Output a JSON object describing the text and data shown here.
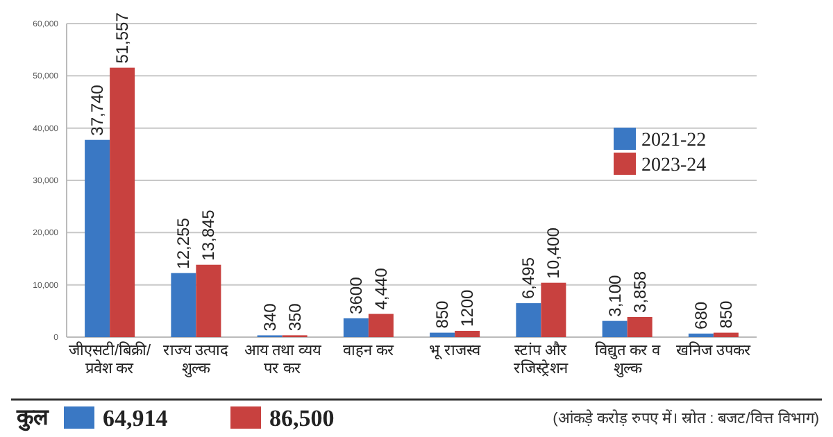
{
  "chart_data": {
    "type": "bar",
    "categories": [
      "जीएसटी/बिक्री/ प्रवेश कर",
      "राज्य उत्पाद शुल्क",
      "आय तथा व्यय पर कर",
      "वाहन कर",
      "भू राजस्व",
      "स्टांप और रजिस्ट्रेशन",
      "विद्युत कर व शुल्क",
      "खनिज उपकर"
    ],
    "series": [
      {
        "name": "2021-22",
        "color": "#3a78c4",
        "values": [
          37740,
          12255,
          340,
          3600,
          850,
          6495,
          3100,
          680
        ],
        "value_labels": [
          "37,740",
          "12,255",
          "340",
          "3600",
          "850",
          "6,495",
          "3,100",
          "680"
        ]
      },
      {
        "name": "2023-24",
        "color": "#c8413f",
        "values": [
          51557,
          13845,
          350,
          4440,
          1200,
          10400,
          3858,
          850
        ],
        "value_labels": [
          "51,557",
          "13,845",
          "350",
          "4,440",
          "1200",
          "10,400",
          "3,858",
          "850"
        ]
      }
    ],
    "ylim": [
      0,
      60000
    ],
    "yticks": [
      0,
      {
        "value": 10000,
        "label": "10,000"
      },
      {
        "value": 20000,
        "label": "20,000"
      },
      {
        "value": 30000,
        "label": "30,000"
      },
      {
        "value": 40000,
        "label": "40,000"
      },
      {
        "value": 50000,
        "label": "50,000"
      },
      {
        "value": 60000,
        "label": "60,000"
      }
    ],
    "grid": "y",
    "legend": "top right",
    "annotations": [
      "कुल",
      "64,914",
      "86,500",
      "(आंकड़े करोड़ रुपए में। स्रोत : बजट/वित्त विभाग)"
    ]
  }
}
